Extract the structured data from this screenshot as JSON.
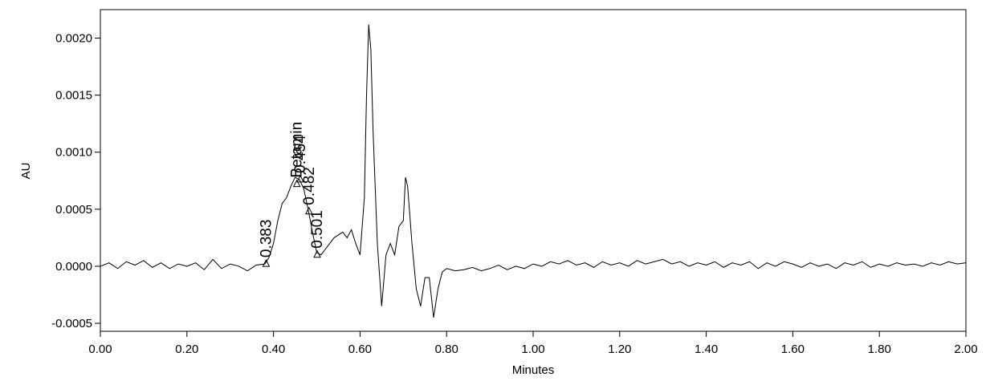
{
  "chart_data": {
    "type": "line",
    "x_label": "Minutes",
    "y_label": "AU",
    "color": "#000000",
    "xlim": [
      0,
      2
    ],
    "ylim": [
      -0.00057,
      0.00225
    ],
    "xticks": [
      {
        "value": 0,
        "label": "0.00"
      },
      {
        "value": 0.2,
        "label": "0.20"
      },
      {
        "value": 0.4,
        "label": "0.40"
      },
      {
        "value": 0.6,
        "label": "0.60"
      },
      {
        "value": 0.8,
        "label": "0.80"
      },
      {
        "value": 1,
        "label": "1.00"
      },
      {
        "value": 1.2,
        "label": "1.20"
      },
      {
        "value": 1.4,
        "label": "1.40"
      },
      {
        "value": 1.6,
        "label": "1.60"
      },
      {
        "value": 1.8,
        "label": "1.80"
      },
      {
        "value": 2,
        "label": "2.00"
      }
    ],
    "yticks": [
      {
        "value": -0.0005,
        "label": "-0.0005"
      },
      {
        "value": 0,
        "label": "0.0000"
      },
      {
        "value": 0.0005,
        "label": "0.0005"
      },
      {
        "value": 0.001,
        "label": "0.0010"
      },
      {
        "value": 0.0015,
        "label": "0.0015"
      },
      {
        "value": 0.002,
        "label": "0.0020"
      }
    ],
    "x": [
      0,
      0.02,
      0.04,
      0.06,
      0.08,
      0.1,
      0.12,
      0.14,
      0.16,
      0.18,
      0.2,
      0.22,
      0.24,
      0.26,
      0.28,
      0.3,
      0.32,
      0.34,
      0.36,
      0.38,
      0.39,
      0.4,
      0.41,
      0.42,
      0.43,
      0.44,
      0.45,
      0.46,
      0.47,
      0.48,
      0.49,
      0.5,
      0.51,
      0.52,
      0.54,
      0.56,
      0.57,
      0.58,
      0.59,
      0.6,
      0.61,
      0.615,
      0.62,
      0.625,
      0.63,
      0.64,
      0.65,
      0.66,
      0.67,
      0.68,
      0.69,
      0.7,
      0.705,
      0.71,
      0.72,
      0.73,
      0.74,
      0.75,
      0.76,
      0.77,
      0.78,
      0.79,
      0.8,
      0.82,
      0.84,
      0.86,
      0.88,
      0.9,
      0.92,
      0.94,
      0.96,
      0.98,
      1,
      1.02,
      1.04,
      1.06,
      1.08,
      1.1,
      1.12,
      1.14,
      1.16,
      1.18,
      1.2,
      1.22,
      1.24,
      1.26,
      1.28,
      1.3,
      1.32,
      1.34,
      1.36,
      1.38,
      1.4,
      1.42,
      1.44,
      1.46,
      1.48,
      1.5,
      1.52,
      1.54,
      1.56,
      1.58,
      1.6,
      1.62,
      1.64,
      1.66,
      1.68,
      1.7,
      1.72,
      1.74,
      1.76,
      1.78,
      1.8,
      1.82,
      1.84,
      1.86,
      1.88,
      1.9,
      1.92,
      1.94,
      1.96,
      1.98,
      2
    ],
    "values": [
      0,
      3e-05,
      -2e-05,
      4e-05,
      1e-05,
      5e-05,
      -1e-05,
      3e-05,
      -2e-05,
      2e-05,
      0,
      3e-05,
      -3e-05,
      6e-05,
      -2e-05,
      2e-05,
      0,
      -4e-05,
      1e-05,
      2e-05,
      8e-05,
      0.0002,
      0.0004,
      0.00055,
      0.0006,
      0.0007,
      0.00078,
      0.00076,
      0.00068,
      0.0005,
      0.0003,
      0.00012,
      0.0001,
      0.00015,
      0.00025,
      0.0003,
      0.00025,
      0.00032,
      0.0002,
      0.0001,
      0.0006,
      0.0015,
      0.00212,
      0.0019,
      0.0012,
      0.0002,
      -0.00035,
      0.0001,
      0.0002,
      0.0001,
      0.00035,
      0.0004,
      0.00078,
      0.0007,
      0.0002,
      -0.0002,
      -0.00035,
      -0.0001,
      -0.0001,
      -0.00045,
      -0.0002,
      -5e-05,
      -2e-05,
      -4e-05,
      -3e-05,
      -1e-05,
      -4e-05,
      -2e-05,
      1e-05,
      -3e-05,
      0,
      -2e-05,
      2e-05,
      0,
      4e-05,
      2e-05,
      5e-05,
      1e-05,
      3e-05,
      -1e-05,
      4e-05,
      1e-05,
      3e-05,
      0,
      5e-05,
      2e-05,
      4e-05,
      6e-05,
      2e-05,
      4e-05,
      0,
      3e-05,
      1e-05,
      4e-05,
      -1e-05,
      3e-05,
      1e-05,
      4e-05,
      -2e-05,
      3e-05,
      0,
      4e-05,
      2e-05,
      -1e-05,
      3e-05,
      0,
      2e-05,
      -2e-05,
      3e-05,
      1e-05,
      4e-05,
      -1e-05,
      2e-05,
      0,
      3e-05,
      1e-05,
      2e-05,
      0,
      3e-05,
      1e-05,
      4e-05,
      2e-05,
      3e-05
    ],
    "annotations": [
      {
        "text": "0.383",
        "x": 0.383,
        "y": 2e-05
      },
      {
        "text": "Betamin",
        "x": 0.454,
        "y": 0.00072
      },
      {
        "text": "0.454",
        "x": 0.462,
        "y": 0.00076
      },
      {
        "text": "0.482",
        "x": 0.482,
        "y": 0.00048
      },
      {
        "text": "0.501",
        "x": 0.501,
        "y": 0.0001
      }
    ]
  }
}
